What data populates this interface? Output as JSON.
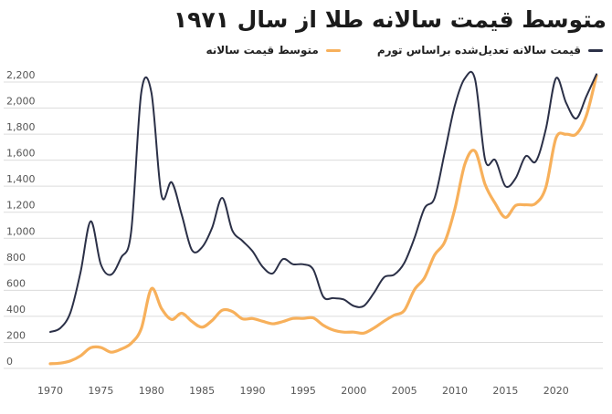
{
  "chart_data": {
    "type": "line",
    "title": "متوسط قیمت سالانه طلا از سال ۱۹۷۱",
    "xlabel": "",
    "ylabel": "",
    "xlim": [
      1970,
      2024
    ],
    "ylim": [
      0,
      2200
    ],
    "x_ticks": [
      "1970",
      "1975",
      "1980",
      "1985",
      "1990",
      "1995",
      "2000",
      "2005",
      "2010",
      "2015",
      "2020"
    ],
    "y_ticks": [
      "0",
      "200",
      "400",
      "600",
      "800",
      "1,000",
      "1,200",
      "1,400",
      "1,600",
      "1,800",
      "2,000",
      "2,200"
    ],
    "grid": true,
    "legend_position": "top-right",
    "series": [
      {
        "name": "قیمت سالانه تعدیل‌شده براساس تورم",
        "color": "#2b3047",
        "x": [
          1970,
          1971,
          1972,
          1973,
          1974,
          1975,
          1976,
          1977,
          1978,
          1979,
          1980,
          1981,
          1982,
          1983,
          1984,
          1985,
          1986,
          1987,
          1988,
          1989,
          1990,
          1991,
          1992,
          1993,
          1994,
          1995,
          1996,
          1997,
          1998,
          1999,
          2000,
          2001,
          2002,
          2003,
          2004,
          2005,
          2006,
          2007,
          2008,
          2009,
          2010,
          2011,
          2012,
          2013,
          2014,
          2015,
          2016,
          2017,
          2018,
          2019,
          2020,
          2021,
          2022,
          2023,
          2024
        ],
        "values": [
          280,
          310,
          430,
          740,
          1130,
          800,
          720,
          850,
          1050,
          2120,
          2120,
          1330,
          1430,
          1180,
          910,
          930,
          1080,
          1310,
          1060,
          980,
          900,
          780,
          730,
          840,
          800,
          800,
          760,
          550,
          540,
          530,
          480,
          480,
          580,
          700,
          720,
          810,
          1000,
          1230,
          1310,
          1660,
          2020,
          2230,
          2220,
          1600,
          1600,
          1400,
          1460,
          1630,
          1590,
          1840,
          2230,
          2040,
          1920,
          2090,
          2260
        ]
      },
      {
        "name": "متوسط قیمت سالانه",
        "color": "#f7b05b",
        "x": [
          1970,
          1971,
          1972,
          1973,
          1974,
          1975,
          1976,
          1977,
          1978,
          1979,
          1980,
          1981,
          1982,
          1983,
          1984,
          1985,
          1986,
          1987,
          1988,
          1989,
          1990,
          1991,
          1992,
          1993,
          1994,
          1995,
          1996,
          1997,
          1998,
          1999,
          2000,
          2001,
          2002,
          2003,
          2004,
          2005,
          2006,
          2007,
          2008,
          2009,
          2010,
          2011,
          2012,
          2013,
          2014,
          2015,
          2016,
          2017,
          2018,
          2019,
          2020,
          2021,
          2022,
          2023,
          2024
        ],
        "values": [
          36,
          41,
          58,
          97,
          159,
          161,
          125,
          148,
          193,
          306,
          612,
          460,
          376,
          424,
          361,
          317,
          368,
          447,
          437,
          381,
          383,
          362,
          343,
          360,
          384,
          384,
          388,
          331,
          294,
          279,
          279,
          271,
          310,
          363,
          409,
          445,
          604,
          696,
          872,
          972,
          1225,
          1572,
          1669,
          1411,
          1266,
          1160,
          1251,
          1257,
          1268,
          1393,
          1770,
          1799,
          1800,
          1943,
          2250
        ]
      }
    ]
  }
}
